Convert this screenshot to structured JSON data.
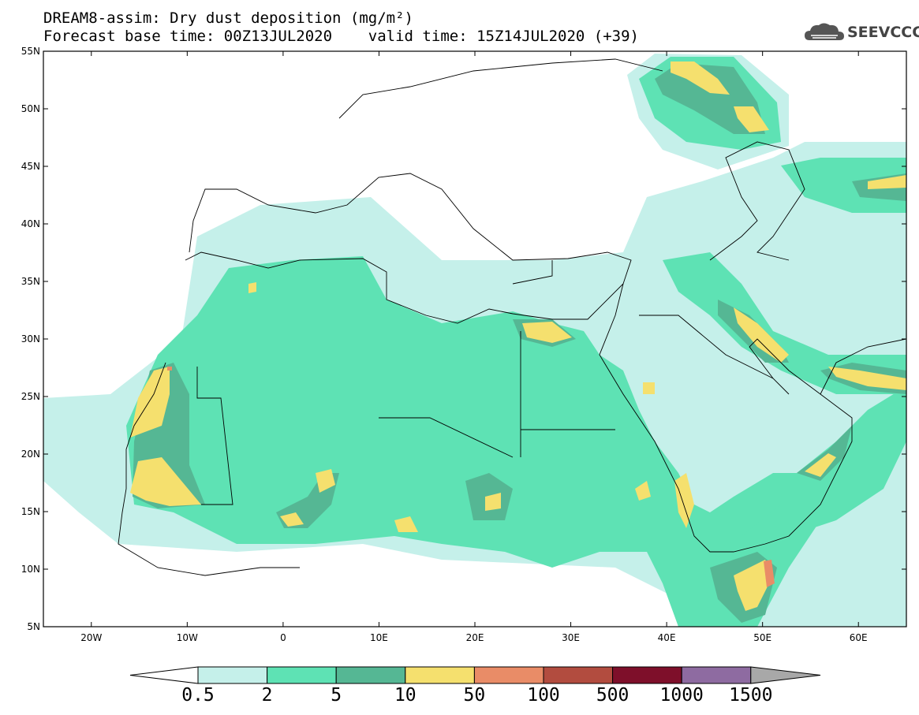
{
  "title": {
    "line1": "DREAM8-assim: Dry dust deposition (mg/m²)",
    "line2": "Forecast base time: 00Z13JUL2020    valid time: 15Z14JUL2020 (+39)"
  },
  "logo": {
    "text": "SEEVCCC",
    "icon": "cloud-icon"
  },
  "map": {
    "lon_range": [
      -25,
      65
    ],
    "lat_range": [
      5,
      55
    ],
    "lat_labels": [
      "5N",
      "10N",
      "15N",
      "20N",
      "25N",
      "30N",
      "35N",
      "40N",
      "45N",
      "50N",
      "55N"
    ],
    "lat_values": [
      5,
      10,
      15,
      20,
      25,
      30,
      35,
      40,
      45,
      50,
      55
    ],
    "lon_labels": [
      "20W",
      "10W",
      "0",
      "10E",
      "20E",
      "30E",
      "40E",
      "50E",
      "60E"
    ],
    "lon_values": [
      -20,
      -10,
      0,
      10,
      20,
      30,
      40,
      50,
      60
    ]
  },
  "colorbar": {
    "levels": [
      "0.5",
      "2",
      "5",
      "10",
      "50",
      "100",
      "500",
      "1000",
      "1500"
    ],
    "colors": [
      "#c5f0ea",
      "#5ee2b4",
      "#55b794",
      "#f5e06e",
      "#e98c67",
      "#b24c3f",
      "#7e0f2a",
      "#8e6ba1"
    ],
    "under_color": "#ffffff",
    "over_color": "#a8a8a8"
  }
}
